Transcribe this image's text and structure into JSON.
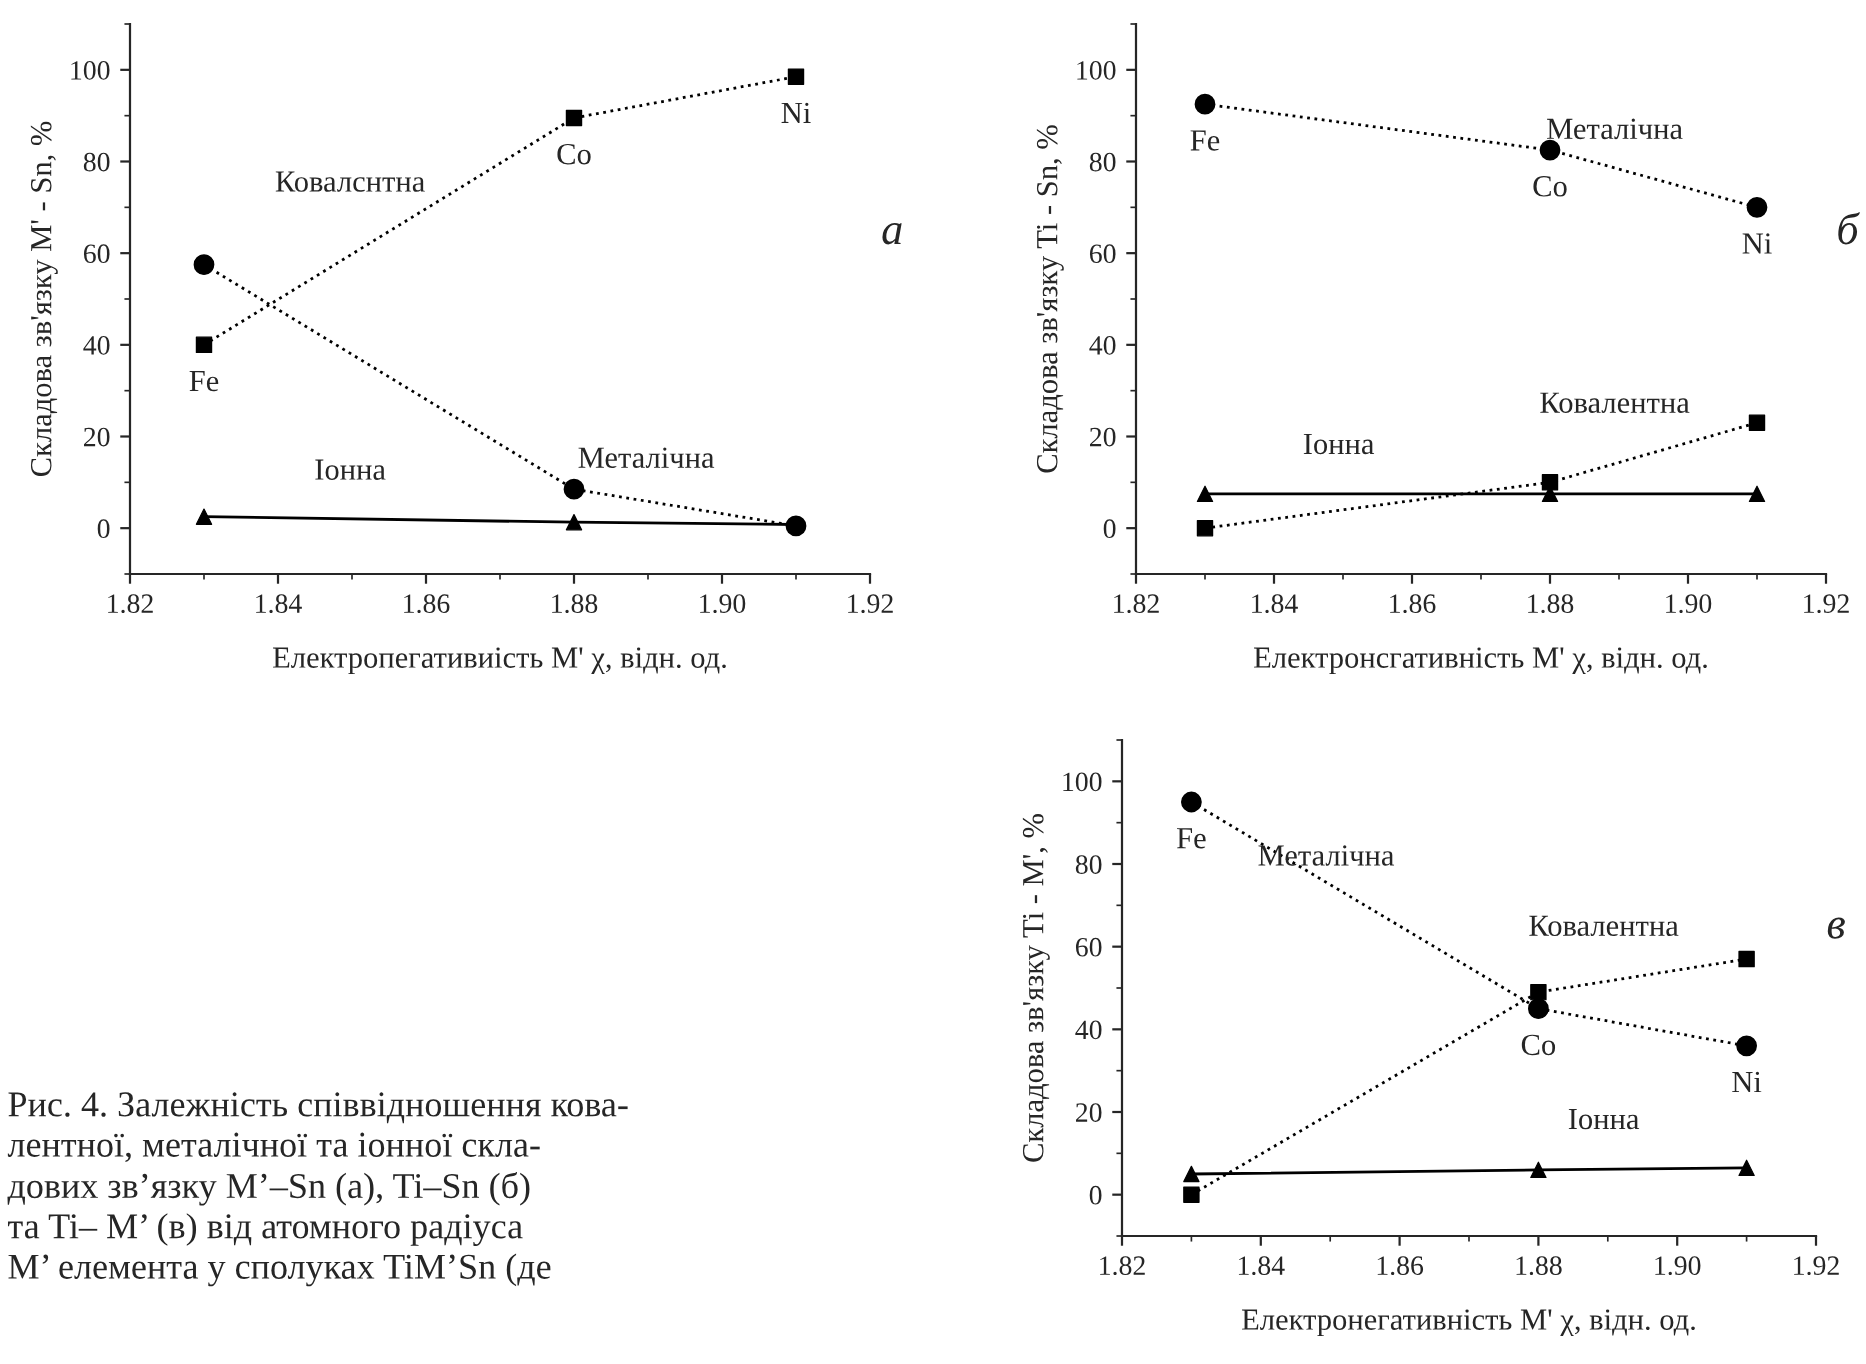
{
  "chart_data": [
    {
      "type": "line",
      "ylabel": "Складова зв'язку M' - Sn, %",
      "xlabel": "Електропегативиість M' χ, відн. од.",
      "x": [
        1.83,
        1.88,
        1.91
      ],
      "xlim": [
        1.82,
        1.92
      ],
      "xticks": [
        {
          "value": 1.82,
          "label": "1.82"
        },
        {
          "value": 1.84,
          "label": "1.84"
        },
        {
          "value": 1.86,
          "label": "1.86"
        },
        {
          "value": 1.88,
          "label": "1.88"
        },
        {
          "value": 1.9,
          "label": "1.90"
        },
        {
          "value": 1.92,
          "label": "1.92"
        }
      ],
      "ylim": [
        -10,
        110
      ],
      "yticks": [
        0,
        20,
        40,
        60,
        80,
        100
      ],
      "grid": false,
      "legend": false,
      "series": [
        {
          "name": "Ковалснтна",
          "color": "#000000",
          "values": [
            40,
            89.5,
            98.5
          ],
          "marker": "square",
          "line_style": "dotted"
        },
        {
          "name": "Металічна",
          "color": "#000000",
          "values": [
            57.5,
            8.5,
            0.5
          ],
          "marker": "circle",
          "line_style": "dotted"
        },
        {
          "name": "Іонна",
          "color": "#000000",
          "values": [
            2.5,
            1.3,
            0.8
          ],
          "marker": "triangle",
          "line_style": "solid"
        }
      ],
      "annotations": [
        "а",
        {
          "text": "Fe",
          "x": 1.83,
          "y": 40
        },
        {
          "text": "Co",
          "x": 1.88,
          "y": 89.5
        },
        {
          "text": "Ni",
          "x": 1.91,
          "y": 98.5
        },
        "Рис. 4. Залежність співвідношення кова-\nлентної, металічної та іонної скла-\nдових зв’язку M’–Sn (а), Ti–Sn (б)\nта Ti– M’ (в) від атомного радіуса\nM’ елемента у сполуках TiM’Sn (де"
      ]
    },
    {
      "type": "line",
      "ylabel": "Складова зв'язку Ti - Sn, %",
      "xlabel": "Електронсгативність M' χ, відн. од.",
      "x": [
        1.83,
        1.88,
        1.91
      ],
      "xlim": [
        1.82,
        1.92
      ],
      "xticks": [
        {
          "value": 1.82,
          "label": "1.82"
        },
        {
          "value": 1.84,
          "label": "1.84"
        },
        {
          "value": 1.86,
          "label": "1.86"
        },
        {
          "value": 1.88,
          "label": "1.88"
        },
        {
          "value": 1.9,
          "label": "1.90"
        },
        {
          "value": 1.92,
          "label": "1.92"
        }
      ],
      "ylim": [
        -10,
        110
      ],
      "yticks": [
        0,
        20,
        40,
        60,
        80,
        100
      ],
      "grid": false,
      "legend": false,
      "series": [
        {
          "name": "Металічна",
          "color": "#000000",
          "values": [
            92.5,
            82.5,
            70
          ],
          "marker": "circle",
          "line_style": "dotted"
        },
        {
          "name": "Ковалентна",
          "color": "#000000",
          "values": [
            0,
            10,
            23
          ],
          "marker": "square",
          "line_style": "dotted"
        },
        {
          "name": "Іонна",
          "color": "#000000",
          "values": [
            7.5,
            7.5,
            7.5
          ],
          "marker": "triangle",
          "line_style": "solid"
        }
      ],
      "annotations": [
        "б",
        {
          "text": "Fe",
          "x": 1.83,
          "y": 92.5
        },
        {
          "text": "Co",
          "x": 1.88,
          "y": 82.5
        },
        {
          "text": "Ni",
          "x": 1.91,
          "y": 70
        }
      ]
    },
    {
      "type": "line",
      "ylabel": "Складова зв'язку Ti - M', %",
      "xlabel": "Електронегативність M' χ, відн. од.",
      "x": [
        1.83,
        1.88,
        1.91
      ],
      "xlim": [
        1.82,
        1.92
      ],
      "xticks": [
        {
          "value": 1.82,
          "label": "1.82"
        },
        {
          "value": 1.84,
          "label": "1.84"
        },
        {
          "value": 1.86,
          "label": "1.86"
        },
        {
          "value": 1.88,
          "label": "1.88"
        },
        {
          "value": 1.9,
          "label": "1.90"
        },
        {
          "value": 1.92,
          "label": "1.92"
        }
      ],
      "ylim": [
        -10,
        110
      ],
      "yticks": [
        0,
        20,
        40,
        60,
        80,
        100
      ],
      "grid": false,
      "legend": false,
      "series": [
        {
          "name": "Металічна",
          "color": "#000000",
          "values": [
            95,
            45,
            36
          ],
          "marker": "circle",
          "line_style": "dotted"
        },
        {
          "name": "Ковалентна",
          "color": "#000000",
          "values": [
            0,
            49,
            57
          ],
          "marker": "square",
          "line_style": "dotted"
        },
        {
          "name": "Іонна",
          "color": "#000000",
          "values": [
            5,
            6,
            6.5
          ],
          "marker": "triangle",
          "line_style": "solid"
        }
      ],
      "annotations": [
        "в",
        {
          "text": "Fe",
          "x": 1.83,
          "y": 95
        },
        {
          "text": "Co",
          "x": 1.88,
          "y": 45
        },
        {
          "text": "Ni",
          "x": 1.91,
          "y": 36
        }
      ]
    }
  ]
}
